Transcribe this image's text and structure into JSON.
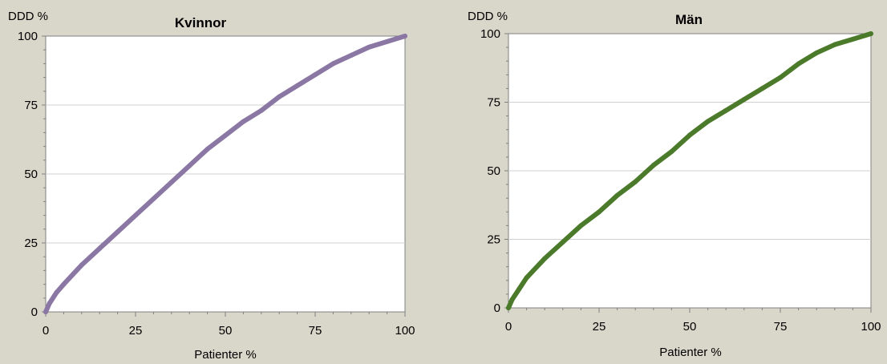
{
  "chart_data": [
    {
      "type": "line",
      "title": "Kvinnor",
      "xlabel": "Patienter %",
      "ylabel": "DDD %",
      "xlim": [
        0,
        100
      ],
      "ylim": [
        0,
        100
      ],
      "xticks": [
        "0",
        "25",
        "50",
        "75",
        "100"
      ],
      "yticks": [
        "0",
        "25",
        "50",
        "75",
        "100"
      ],
      "grid": true,
      "series": [
        {
          "color": "#8b77a3",
          "x": [
            0,
            1,
            3,
            5,
            10,
            15,
            20,
            25,
            30,
            35,
            40,
            45,
            50,
            55,
            60,
            65,
            70,
            75,
            80,
            85,
            90,
            95,
            100
          ],
          "y": [
            0,
            3,
            7,
            10,
            17,
            23,
            29,
            35,
            41,
            47,
            53,
            59,
            64,
            69,
            73,
            78,
            82,
            86,
            90,
            93,
            96,
            98,
            100
          ]
        }
      ]
    },
    {
      "type": "line",
      "title": "Män",
      "xlabel": "Patienter %",
      "ylabel": "DDD %",
      "xlim": [
        0,
        100
      ],
      "ylim": [
        0,
        100
      ],
      "xticks": [
        "0",
        "25",
        "50",
        "75",
        "100"
      ],
      "yticks": [
        "0",
        "25",
        "50",
        "75",
        "100"
      ],
      "grid": true,
      "series": [
        {
          "color": "#4a7a2a",
          "x": [
            0,
            1,
            3,
            5,
            10,
            15,
            20,
            25,
            30,
            35,
            40,
            45,
            50,
            55,
            60,
            65,
            70,
            75,
            80,
            85,
            90,
            95,
            100
          ],
          "y": [
            0,
            3,
            7,
            11,
            18,
            24,
            30,
            35,
            41,
            46,
            52,
            57,
            63,
            68,
            72,
            76,
            80,
            84,
            89,
            93,
            96,
            98,
            100
          ]
        }
      ]
    }
  ]
}
